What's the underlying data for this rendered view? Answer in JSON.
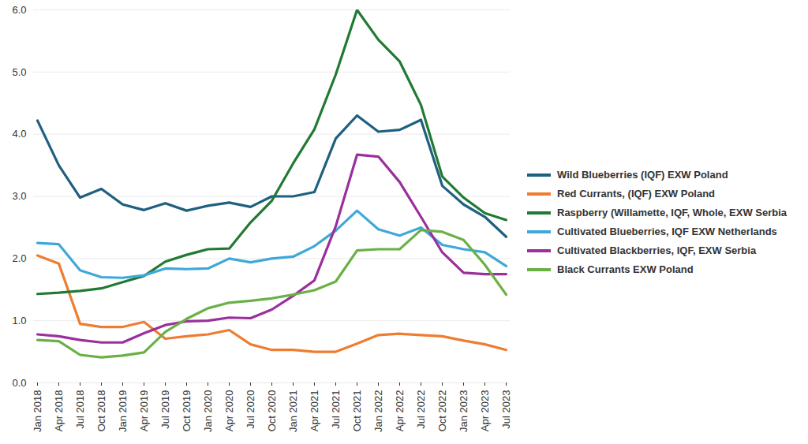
{
  "chart_data": {
    "type": "line",
    "x": [
      "Jan 2018",
      "Apr 2018",
      "Jul 2018",
      "Oct 2018",
      "Jan 2019",
      "Apr 2019",
      "Jul 2019",
      "Oct 2019",
      "Jan 2020",
      "Apr 2020",
      "Jul 2020",
      "Oct 2020",
      "Jan 2021",
      "Apr 2021",
      "Jul 2021",
      "Oct 2021",
      "Jan 2022",
      "Apr 2022",
      "Jul 2022",
      "Oct 2022",
      "Jan 2023",
      "Apr 2023",
      "Jul 2023"
    ],
    "series": [
      {
        "name": "Wild Blueberries (IQF) EXW Poland",
        "color": "#1f5f7f",
        "values": [
          4.22,
          3.5,
          2.98,
          3.12,
          2.87,
          2.78,
          2.89,
          2.77,
          2.85,
          2.9,
          2.83,
          3.0,
          3.0,
          3.07,
          3.93,
          4.3,
          4.04,
          4.07,
          4.23,
          3.17,
          2.87,
          2.67,
          2.35
        ]
      },
      {
        "name": "Red Currants, (IQF) EXW Poland",
        "color": "#ed7d31",
        "values": [
          2.05,
          1.92,
          0.95,
          0.9,
          0.9,
          0.98,
          0.71,
          0.75,
          0.78,
          0.85,
          0.62,
          0.53,
          0.53,
          0.5,
          0.5,
          0.63,
          0.77,
          0.79,
          0.77,
          0.75,
          0.68,
          0.62,
          0.53
        ]
      },
      {
        "name": "Raspberry (Willamette, IQF, Whole, EXW Serbia",
        "color": "#217a33",
        "values": [
          1.43,
          1.45,
          1.48,
          1.52,
          1.62,
          1.72,
          1.95,
          2.06,
          2.15,
          2.16,
          2.58,
          2.93,
          3.53,
          4.08,
          4.96,
          6.0,
          5.52,
          5.17,
          4.47,
          3.32,
          2.98,
          2.73,
          2.62
        ]
      },
      {
        "name": "Cultivated Blueberries, IQF EXW Netherlands",
        "color": "#3ea8d8",
        "values": [
          2.25,
          2.23,
          1.81,
          1.7,
          1.69,
          1.73,
          1.84,
          1.83,
          1.84,
          2.0,
          1.94,
          2.0,
          2.03,
          2.2,
          2.45,
          2.77,
          2.47,
          2.37,
          2.5,
          2.22,
          2.15,
          2.1,
          1.88
        ]
      },
      {
        "name": "Cultivated Blackberries, IQF, EXW Serbia",
        "color": "#9b2f9b",
        "values": [
          0.78,
          0.75,
          0.69,
          0.65,
          0.65,
          0.8,
          0.93,
          0.99,
          1.0,
          1.05,
          1.04,
          1.18,
          1.4,
          1.65,
          2.52,
          3.67,
          3.64,
          3.23,
          2.67,
          2.1,
          1.77,
          1.75,
          1.75
        ]
      },
      {
        "name": "Black Currants  EXW Poland",
        "color": "#6ab045",
        "values": [
          0.69,
          0.67,
          0.45,
          0.41,
          0.44,
          0.49,
          0.82,
          1.03,
          1.2,
          1.29,
          1.32,
          1.36,
          1.42,
          1.49,
          1.63,
          2.13,
          2.15,
          2.15,
          2.46,
          2.43,
          2.3,
          1.9,
          1.42
        ]
      }
    ],
    "ylim": [
      0,
      6
    ],
    "yticks": [
      {
        "value": 0,
        "label": "0.0"
      },
      {
        "value": 1,
        "label": "1.0"
      },
      {
        "value": 2,
        "label": "2.0"
      },
      {
        "value": 3,
        "label": "3.0"
      },
      {
        "value": 4,
        "label": "4.0"
      },
      {
        "value": 5,
        "label": "5.0"
      },
      {
        "value": 6,
        "label": "6.0"
      }
    ],
    "grid": true,
    "legend": "right"
  }
}
